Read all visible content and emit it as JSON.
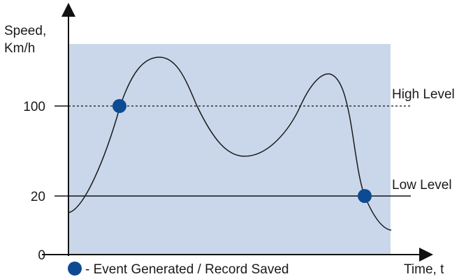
{
  "axes": {
    "y_label_line1": "Speed,",
    "y_label_line2": "Km/h",
    "x_label": "Time, t"
  },
  "ticks": {
    "high": "100",
    "low": "20",
    "zero": "0"
  },
  "levels": {
    "high_label": "High Level",
    "low_label": "Low Level"
  },
  "legend": {
    "text": "- Event Generated / Record Saved"
  },
  "colors": {
    "region_fill": "#cad7ea",
    "marker": "#0d4a92",
    "axis": "#111111",
    "curve": "#1a1a1a"
  }
}
